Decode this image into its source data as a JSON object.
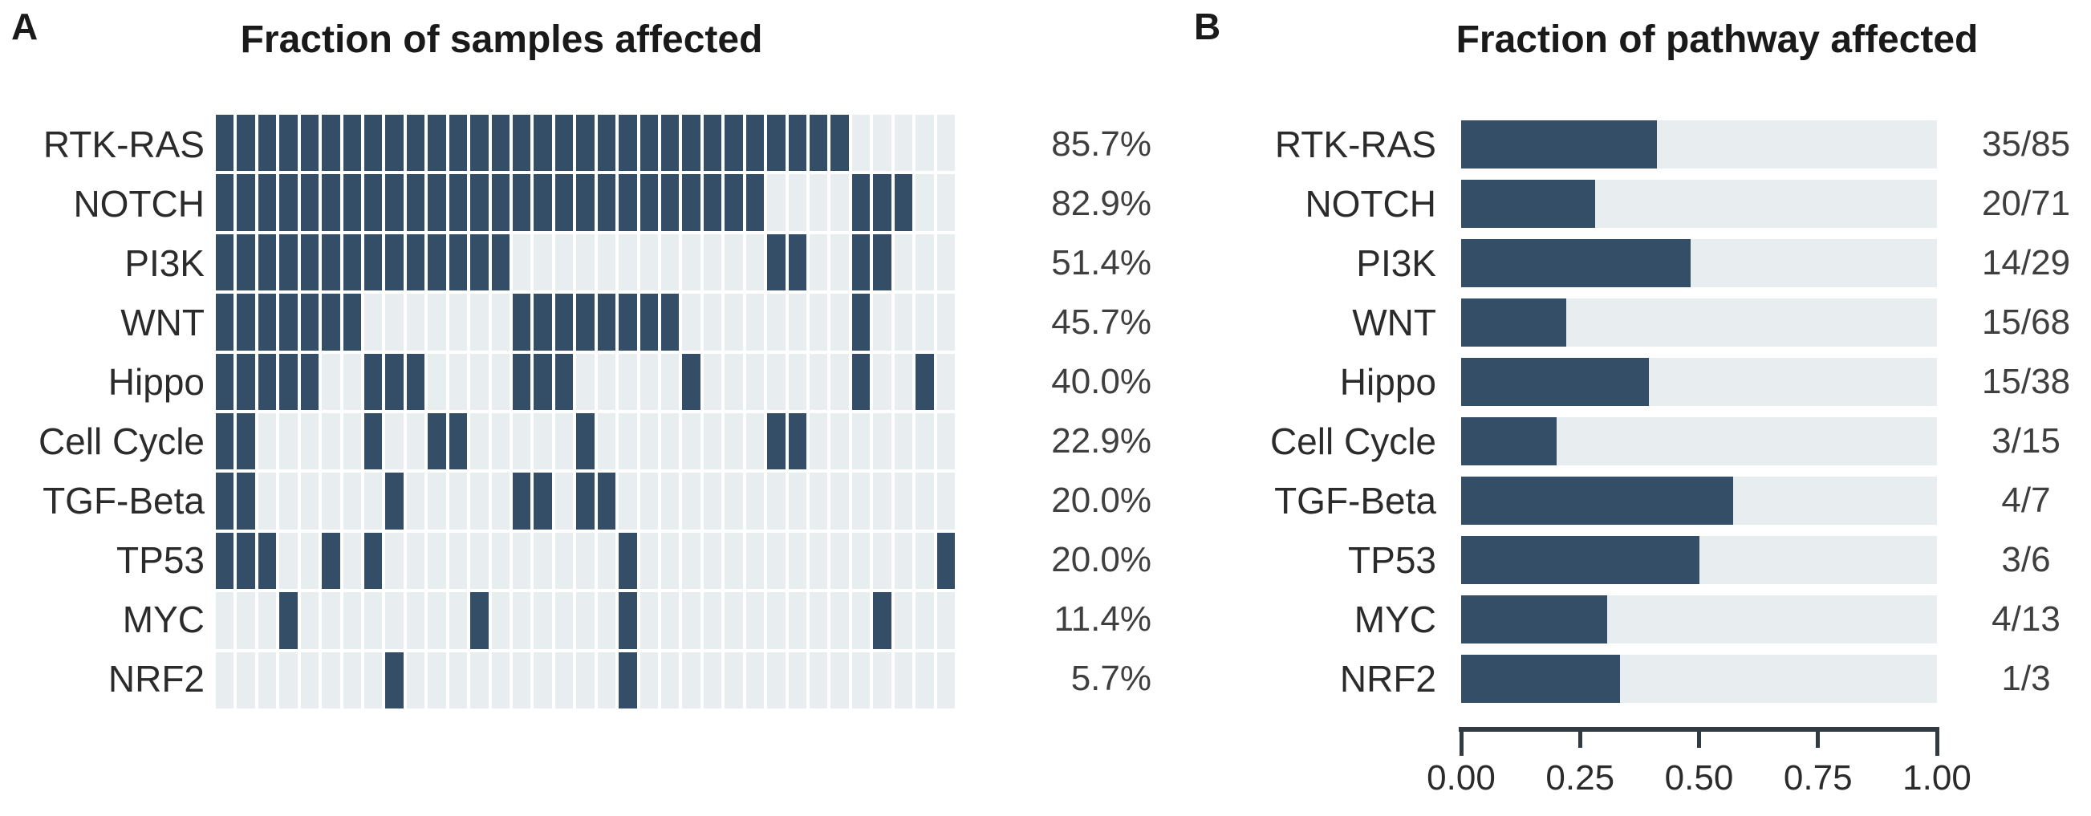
{
  "colors": {
    "dark": "#344E68",
    "light": "#E8EDF0",
    "axis": "#333B42"
  },
  "panel_a": {
    "label": "A",
    "title": "Fraction of samples affected",
    "n_columns": 35,
    "rows": [
      {
        "pathway": "RTK-RAS",
        "percent": "85.7%",
        "cells": [
          1,
          2,
          3,
          4,
          5,
          6,
          7,
          8,
          9,
          10,
          11,
          12,
          13,
          14,
          15,
          16,
          17,
          18,
          19,
          20,
          21,
          22,
          23,
          24,
          25,
          26,
          27,
          28,
          29,
          30
        ]
      },
      {
        "pathway": "NOTCH",
        "percent": "82.9%",
        "cells": [
          1,
          2,
          3,
          4,
          5,
          6,
          7,
          8,
          9,
          10,
          11,
          12,
          13,
          14,
          15,
          16,
          17,
          18,
          19,
          20,
          21,
          22,
          23,
          24,
          25,
          26,
          31,
          32,
          33
        ]
      },
      {
        "pathway": "PI3K",
        "percent": "51.4%",
        "cells": [
          1,
          2,
          3,
          4,
          5,
          6,
          7,
          8,
          9,
          10,
          11,
          12,
          13,
          14,
          27,
          28,
          31,
          32
        ]
      },
      {
        "pathway": "WNT",
        "percent": "45.7%",
        "cells": [
          1,
          2,
          3,
          4,
          5,
          6,
          7,
          15,
          16,
          17,
          18,
          19,
          20,
          21,
          22,
          31
        ]
      },
      {
        "pathway": "Hippo",
        "percent": "40.0%",
        "cells": [
          1,
          2,
          3,
          4,
          5,
          8,
          9,
          10,
          15,
          16,
          17,
          23,
          31,
          34
        ]
      },
      {
        "pathway": "Cell Cycle",
        "percent": "22.9%",
        "cells": [
          1,
          2,
          8,
          11,
          12,
          18,
          27,
          28
        ]
      },
      {
        "pathway": "TGF-Beta",
        "percent": "20.0%",
        "cells": [
          1,
          2,
          9,
          15,
          16,
          18,
          19
        ]
      },
      {
        "pathway": "TP53",
        "percent": "20.0%",
        "cells": [
          1,
          2,
          3,
          6,
          8,
          20,
          35
        ]
      },
      {
        "pathway": "MYC",
        "percent": "11.4%",
        "cells": [
          4,
          13,
          20,
          32
        ]
      },
      {
        "pathway": "NRF2",
        "percent": "5.7%",
        "cells": [
          9,
          20
        ]
      }
    ]
  },
  "panel_b": {
    "label": "B",
    "title": "Fraction of pathway affected",
    "rows": [
      {
        "pathway": "RTK-RAS",
        "fraction": "35/85",
        "numerator": 35,
        "denominator": 85
      },
      {
        "pathway": "NOTCH",
        "fraction": "20/71",
        "numerator": 20,
        "denominator": 71
      },
      {
        "pathway": "PI3K",
        "fraction": "14/29",
        "numerator": 14,
        "denominator": 29
      },
      {
        "pathway": "WNT",
        "fraction": "15/68",
        "numerator": 15,
        "denominator": 68
      },
      {
        "pathway": "Hippo",
        "fraction": "15/38",
        "numerator": 15,
        "denominator": 38
      },
      {
        "pathway": "Cell Cycle",
        "fraction": "3/15",
        "numerator": 3,
        "denominator": 15
      },
      {
        "pathway": "TGF-Beta",
        "fraction": "4/7",
        "numerator": 4,
        "denominator": 7
      },
      {
        "pathway": "TP53",
        "fraction": "3/6",
        "numerator": 3,
        "denominator": 6
      },
      {
        "pathway": "MYC",
        "fraction": "4/13",
        "numerator": 4,
        "denominator": 13
      },
      {
        "pathway": "NRF2",
        "fraction": "1/3",
        "numerator": 1,
        "denominator": 3
      }
    ],
    "axis": {
      "ticks": [
        "0.00",
        "0.25",
        "0.50",
        "0.75",
        "1.00"
      ],
      "values": [
        0,
        0.25,
        0.5,
        0.75,
        1
      ]
    }
  },
  "chart_data": [
    {
      "type": "heatmap",
      "title": "Fraction of samples affected",
      "rows": [
        "RTK-RAS",
        "NOTCH",
        "PI3K",
        "WNT",
        "Hippo",
        "Cell Cycle",
        "TGF-Beta",
        "TP53",
        "MYC",
        "NRF2"
      ],
      "n_samples": 35,
      "percent_affected": [
        85.7,
        82.9,
        51.4,
        45.7,
        40.0,
        22.9,
        20.0,
        20.0,
        11.4,
        5.7
      ],
      "affected_sample_columns": {
        "RTK-RAS": [
          1,
          2,
          3,
          4,
          5,
          6,
          7,
          8,
          9,
          10,
          11,
          12,
          13,
          14,
          15,
          16,
          17,
          18,
          19,
          20,
          21,
          22,
          23,
          24,
          25,
          26,
          27,
          28,
          29,
          30
        ],
        "NOTCH": [
          1,
          2,
          3,
          4,
          5,
          6,
          7,
          8,
          9,
          10,
          11,
          12,
          13,
          14,
          15,
          16,
          17,
          18,
          19,
          20,
          21,
          22,
          23,
          24,
          25,
          26,
          31,
          32,
          33
        ],
        "PI3K": [
          1,
          2,
          3,
          4,
          5,
          6,
          7,
          8,
          9,
          10,
          11,
          12,
          13,
          14,
          27,
          28,
          31,
          32
        ],
        "WNT": [
          1,
          2,
          3,
          4,
          5,
          6,
          7,
          15,
          16,
          17,
          18,
          19,
          20,
          21,
          22,
          31
        ],
        "Hippo": [
          1,
          2,
          3,
          4,
          5,
          8,
          9,
          10,
          15,
          16,
          17,
          23,
          31,
          34
        ],
        "Cell Cycle": [
          1,
          2,
          8,
          11,
          12,
          18,
          27,
          28
        ],
        "TGF-Beta": [
          1,
          2,
          9,
          15,
          16,
          18,
          19
        ],
        "TP53": [
          1,
          2,
          3,
          6,
          8,
          20,
          35
        ],
        "MYC": [
          4,
          13,
          20,
          32
        ],
        "NRF2": [
          9,
          20
        ]
      },
      "cell_on_color": "#344E68",
      "cell_off_color": "#E8EDF0",
      "legend_position": "none",
      "grid": false
    },
    {
      "type": "bar",
      "orientation": "horizontal",
      "title": "Fraction of pathway affected",
      "categories": [
        "RTK-RAS",
        "NOTCH",
        "PI3K",
        "WNT",
        "Hippo",
        "Cell Cycle",
        "TGF-Beta",
        "TP53",
        "MYC",
        "NRF2"
      ],
      "values": [
        0.412,
        0.282,
        0.483,
        0.221,
        0.395,
        0.2,
        0.571,
        0.5,
        0.308,
        0.333
      ],
      "bar_labels": [
        "35/85",
        "20/71",
        "14/29",
        "15/68",
        "15/38",
        "3/15",
        "4/7",
        "3/6",
        "4/13",
        "1/3"
      ],
      "xlabel": "",
      "ylabel": "",
      "xlim": [
        0,
        1
      ],
      "xticks": [
        0.0,
        0.25,
        0.5,
        0.75,
        1.0
      ],
      "bar_color": "#344E68",
      "track_color": "#E8EDF0",
      "legend_position": "none",
      "grid": false
    }
  ]
}
